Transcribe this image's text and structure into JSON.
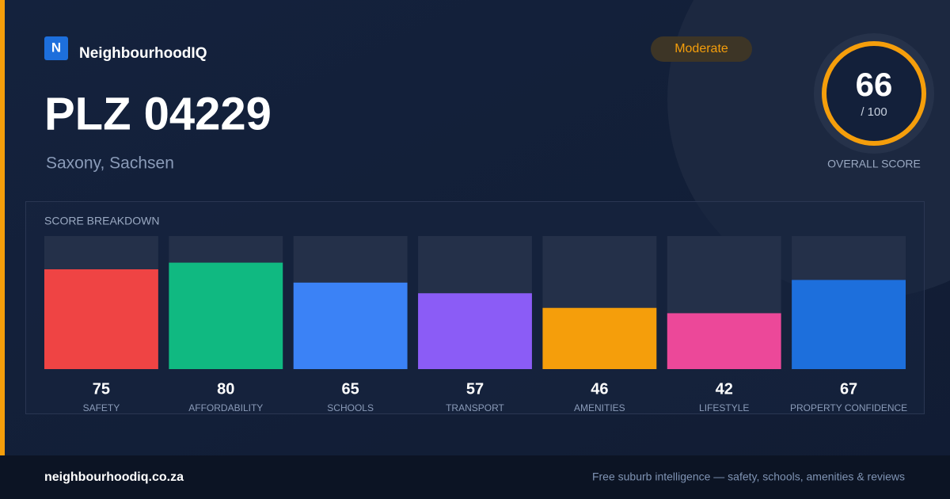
{
  "brand": {
    "logo": "N",
    "name": "NeighbourhoodIQ"
  },
  "badge": "Moderate",
  "header": {
    "title": "PLZ 04229",
    "subtitle": "Saxony, Sachsen"
  },
  "score": {
    "value": 66,
    "max": {
      "value": 100,
      "label": "/ 100"
    },
    "label": "OVERALL SCORE"
  },
  "chart_data": {
    "type": "bar",
    "title": "SCORE BREAKDOWN",
    "categories": [
      "SAFETY",
      "AFFORDABILITY",
      "SCHOOLS",
      "TRANSPORT",
      "AMENITIES",
      "LIFESTYLE",
      "PROPERTY CONFIDENCE"
    ],
    "values": [
      75,
      80,
      65,
      57,
      46,
      42,
      67
    ],
    "colors": [
      "#ef4444",
      "#10b981",
      "#3b82f6",
      "#8b5cf6",
      "#f59e0b",
      "#ec4899",
      "#1d6fdc"
    ],
    "ylim": [
      0,
      100
    ]
  },
  "footer": {
    "site": "neighbourhoodiq.co.za",
    "tagline": "Free suburb intelligence — safety, schools, amenities & reviews"
  }
}
